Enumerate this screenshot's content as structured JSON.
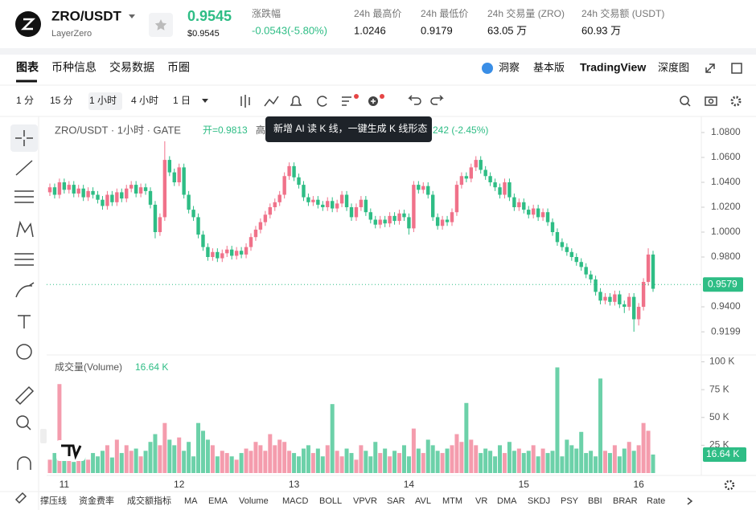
{
  "header": {
    "symbol": "ZRO/USDT",
    "name": "LayerZero",
    "price": "0.9545",
    "price_usd": "$0.9545",
    "stats": [
      {
        "label": "涨跌幅",
        "value": "-0.0543(-5.80%)"
      },
      {
        "label": "24h 最高价",
        "value": "1.0246"
      },
      {
        "label": "24h 最低价",
        "value": "0.9179"
      },
      {
        "label": "24h 交易量 (ZRO)",
        "value": "63.05 万"
      },
      {
        "label": "24h 交易额 (USDT)",
        "value": "60.93 万"
      }
    ]
  },
  "tabs": [
    "图表",
    "币种信息",
    "交易数据",
    "币圈"
  ],
  "right_tabs": [
    "洞察",
    "基本版",
    "TradingView",
    "深度图"
  ],
  "intervals": [
    "1 分",
    "15 分",
    "1 小时",
    "4 小时",
    "1 日"
  ],
  "indicators": [
    "撑压线",
    "资金费率",
    "成交额指标",
    "MA",
    "EMA",
    "Volume",
    "MACD",
    "BOLL",
    "VPVR",
    "SAR",
    "AVL",
    "MTM",
    "VR",
    "DMA",
    "SKDJ",
    "PSY",
    "BBI",
    "BRAR",
    "Rate"
  ],
  "chart_data": {
    "type": "candlestick",
    "legend": {
      "title": "ZRO/USDT · 1小时 · GATE",
      "open": "开=0.9813",
      "high": "高",
      "change": "242 (-2.45%)"
    },
    "tooltip": "新增 AI 读 K 线，一键生成 K 线形态",
    "volume_legend": "成交量(Volume)",
    "x_labels": [
      "11",
      "12",
      "13",
      "14",
      "15",
      "16"
    ],
    "up_color": "#f0728a",
    "down_color": "#2ebd85",
    "ylim": [
      0.9026,
      1.0929
    ],
    "yticks": [
      {
        "value": 0.9199,
        "label": "0.9199"
      },
      {
        "value": 0.94,
        "label": "0.9400"
      },
      {
        "value": 0.98,
        "label": "0.9800"
      },
      {
        "value": 1.0,
        "label": "1.0000"
      },
      {
        "value": 1.02,
        "label": "1.0200"
      },
      {
        "value": 1.04,
        "label": "1.0400"
      },
      {
        "value": 1.06,
        "label": "1.0600"
      },
      {
        "value": 1.08,
        "label": "1.0800"
      }
    ],
    "current_price": {
      "value": 0.9579,
      "label": "0.9579"
    },
    "volume_ylim": [
      0,
      104
    ],
    "volume_yticks": [
      {
        "value": 25,
        "label": "25 K"
      },
      {
        "value": 50,
        "label": "50 K"
      },
      {
        "value": 75,
        "label": "75 K"
      },
      {
        "value": 100,
        "label": "100 K"
      }
    ],
    "volume_tag": {
      "value": 16.64,
      "label": "16.64 K"
    },
    "ohlc": [
      [
        1.032,
        1.039,
        1.029,
        1.036
      ],
      [
        1.036,
        1.039,
        1.027,
        1.03
      ],
      [
        1.03,
        1.043,
        1.027,
        1.04
      ],
      [
        1.04,
        1.043,
        1.031,
        1.034
      ],
      [
        1.034,
        1.041,
        1.031,
        1.038
      ],
      [
        1.038,
        1.041,
        1.028,
        1.031
      ],
      [
        1.031,
        1.038,
        1.028,
        1.035
      ],
      [
        1.035,
        1.038,
        1.025,
        1.028
      ],
      [
        1.028,
        1.036,
        1.025,
        1.033
      ],
      [
        1.033,
        1.036,
        1.027,
        1.03
      ],
      [
        1.03,
        1.033,
        1.023,
        1.026
      ],
      [
        1.026,
        1.029,
        1.018,
        1.021
      ],
      [
        1.021,
        1.033,
        1.018,
        1.03
      ],
      [
        1.03,
        1.033,
        1.021,
        1.024
      ],
      [
        1.024,
        1.035,
        1.021,
        1.032
      ],
      [
        1.032,
        1.035,
        1.024,
        1.027
      ],
      [
        1.027,
        1.038,
        1.024,
        1.035
      ],
      [
        1.035,
        1.041,
        1.032,
        1.038
      ],
      [
        1.038,
        1.041,
        1.028,
        1.031
      ],
      [
        1.031,
        1.039,
        1.028,
        1.036
      ],
      [
        1.036,
        1.039,
        1.03,
        1.033
      ],
      [
        1.033,
        1.036,
        1.019,
        1.022
      ],
      [
        1.022,
        1.025,
        0.995,
        1.0
      ],
      [
        1.0,
        1.015,
        0.997,
        1.012
      ],
      [
        1.012,
        1.073,
        1.009,
        1.058
      ],
      [
        1.058,
        1.061,
        1.045,
        1.048
      ],
      [
        1.048,
        1.051,
        1.037,
        1.04
      ],
      [
        1.04,
        1.055,
        1.037,
        1.052
      ],
      [
        1.052,
        1.055,
        1.027,
        1.03
      ],
      [
        1.03,
        1.033,
        1.015,
        1.018
      ],
      [
        1.018,
        1.021,
        1.009,
        1.012
      ],
      [
        1.012,
        1.015,
        0.995,
        0.998
      ],
      [
        0.998,
        1.001,
        0.985,
        0.988
      ],
      [
        0.988,
        0.991,
        0.977,
        0.98
      ],
      [
        0.98,
        0.987,
        0.977,
        0.984
      ],
      [
        0.984,
        0.987,
        0.976,
        0.979
      ],
      [
        0.979,
        0.986,
        0.976,
        0.983
      ],
      [
        0.983,
        0.989,
        0.98,
        0.986
      ],
      [
        0.986,
        0.989,
        0.978,
        0.981
      ],
      [
        0.981,
        0.988,
        0.978,
        0.985
      ],
      [
        0.985,
        0.988,
        0.979,
        0.982
      ],
      [
        0.982,
        0.991,
        0.979,
        0.988
      ],
      [
        0.988,
        0.999,
        0.985,
        0.996
      ],
      [
        0.996,
        1.005,
        0.993,
        1.002
      ],
      [
        1.002,
        1.011,
        0.999,
        1.008
      ],
      [
        1.008,
        1.017,
        1.005,
        1.014
      ],
      [
        1.014,
        1.023,
        1.011,
        1.02
      ],
      [
        1.02,
        1.027,
        1.017,
        1.024
      ],
      [
        1.024,
        1.033,
        1.021,
        1.03
      ],
      [
        1.03,
        1.048,
        1.027,
        1.045
      ],
      [
        1.045,
        1.056,
        1.042,
        1.053
      ],
      [
        1.053,
        1.056,
        1.041,
        1.044
      ],
      [
        1.044,
        1.047,
        1.035,
        1.038
      ],
      [
        1.038,
        1.041,
        1.025,
        1.028
      ],
      [
        1.028,
        1.031,
        1.021,
        1.024
      ],
      [
        1.024,
        1.029,
        1.021,
        1.026
      ],
      [
        1.026,
        1.029,
        1.019,
        1.022
      ],
      [
        1.022,
        1.025,
        1.017,
        1.02
      ],
      [
        1.02,
        1.028,
        1.017,
        1.025
      ],
      [
        1.025,
        1.028,
        1.016,
        1.019
      ],
      [
        1.019,
        1.026,
        1.016,
        1.023
      ],
      [
        1.023,
        1.033,
        1.02,
        1.03
      ],
      [
        1.03,
        1.033,
        1.017,
        1.02
      ],
      [
        1.02,
        1.023,
        1.009,
        1.012
      ],
      [
        1.012,
        1.023,
        1.009,
        1.02
      ],
      [
        1.02,
        1.029,
        1.017,
        1.026
      ],
      [
        1.026,
        1.029,
        1.013,
        1.016
      ],
      [
        1.016,
        1.019,
        1.007,
        1.01
      ],
      [
        1.01,
        1.013,
        1.003,
        1.006
      ],
      [
        1.006,
        1.013,
        1.003,
        1.01
      ],
      [
        1.01,
        1.013,
        1.004,
        1.007
      ],
      [
        1.007,
        1.016,
        1.004,
        1.013
      ],
      [
        1.013,
        1.016,
        1.006,
        1.009
      ],
      [
        1.009,
        1.018,
        1.006,
        1.015
      ],
      [
        1.015,
        1.018,
        1.009,
        1.012
      ],
      [
        1.012,
        1.015,
        0.998,
        1.003
      ],
      [
        1.003,
        1.041,
        1.0,
        1.038
      ],
      [
        1.038,
        1.041,
        1.031,
        1.034
      ],
      [
        1.034,
        1.04,
        1.031,
        1.037
      ],
      [
        1.037,
        1.04,
        1.027,
        1.03
      ],
      [
        1.03,
        1.033,
        1.009,
        1.012
      ],
      [
        1.012,
        1.015,
        1.002,
        1.005
      ],
      [
        1.005,
        1.013,
        1.002,
        1.01
      ],
      [
        1.01,
        1.013,
        1.005,
        1.008
      ],
      [
        1.008,
        1.019,
        1.005,
        1.016
      ],
      [
        1.016,
        1.041,
        1.013,
        1.038
      ],
      [
        1.038,
        1.048,
        1.035,
        1.045
      ],
      [
        1.045,
        1.048,
        1.04,
        1.043
      ],
      [
        1.043,
        1.055,
        1.04,
        1.052
      ],
      [
        1.052,
        1.061,
        1.049,
        1.058
      ],
      [
        1.058,
        1.061,
        1.047,
        1.05
      ],
      [
        1.05,
        1.053,
        1.042,
        1.045
      ],
      [
        1.045,
        1.048,
        1.037,
        1.04
      ],
      [
        1.04,
        1.043,
        1.033,
        1.036
      ],
      [
        1.036,
        1.039,
        1.027,
        1.03
      ],
      [
        1.03,
        1.043,
        1.027,
        1.04
      ],
      [
        1.04,
        1.043,
        1.025,
        1.028
      ],
      [
        1.028,
        1.031,
        1.017,
        1.02
      ],
      [
        1.02,
        1.027,
        1.017,
        1.024
      ],
      [
        1.024,
        1.027,
        1.015,
        1.018
      ],
      [
        1.018,
        1.021,
        1.011,
        1.014
      ],
      [
        1.014,
        1.022,
        1.011,
        1.019
      ],
      [
        1.019,
        1.022,
        1.009,
        1.012
      ],
      [
        1.012,
        1.019,
        1.009,
        1.016
      ],
      [
        1.016,
        1.019,
        1.005,
        1.008
      ],
      [
        1.008,
        1.011,
        0.997,
        1.0
      ],
      [
        1.0,
        1.003,
        0.989,
        0.992
      ],
      [
        0.992,
        0.995,
        0.985,
        0.988
      ],
      [
        0.988,
        0.991,
        0.981,
        0.984
      ],
      [
        0.984,
        0.987,
        0.977,
        0.98
      ],
      [
        0.98,
        0.983,
        0.973,
        0.976
      ],
      [
        0.976,
        0.979,
        0.969,
        0.972
      ],
      [
        0.972,
        0.975,
        0.963,
        0.966
      ],
      [
        0.966,
        0.969,
        0.959,
        0.962
      ],
      [
        0.962,
        0.965,
        0.949,
        0.952
      ],
      [
        0.952,
        0.955,
        0.942,
        0.945
      ],
      [
        0.945,
        0.951,
        0.942,
        0.948
      ],
      [
        0.948,
        0.951,
        0.941,
        0.944
      ],
      [
        0.944,
        0.953,
        0.941,
        0.95
      ],
      [
        0.95,
        0.953,
        0.939,
        0.942
      ],
      [
        0.942,
        0.945,
        0.935,
        0.94
      ],
      [
        0.94,
        0.951,
        0.937,
        0.948
      ],
      [
        0.948,
        0.951,
        0.92,
        0.93
      ],
      [
        0.93,
        0.943,
        0.925,
        0.94
      ],
      [
        0.94,
        0.963,
        0.937,
        0.96
      ],
      [
        0.96,
        0.987,
        0.957,
        0.982
      ],
      [
        0.982,
        0.985,
        0.952,
        0.9545
      ]
    ],
    "volume": [
      12,
      18,
      80,
      20,
      15,
      10,
      22,
      14,
      12,
      18,
      15,
      20,
      25,
      14,
      30,
      18,
      25,
      20,
      22,
      15,
      20,
      28,
      35,
      25,
      45,
      30,
      25,
      32,
      20,
      28,
      15,
      45,
      38,
      30,
      25,
      15,
      20,
      18,
      15,
      12,
      18,
      22,
      20,
      28,
      25,
      20,
      35,
      25,
      30,
      28,
      20,
      18,
      15,
      22,
      25,
      18,
      22,
      15,
      25,
      62,
      20,
      15,
      22,
      18,
      12,
      25,
      20,
      15,
      28,
      18,
      22,
      15,
      20,
      18,
      25,
      15,
      40,
      22,
      18,
      30,
      25,
      20,
      18,
      22,
      25,
      35,
      28,
      63,
      30,
      25,
      18,
      22,
      20,
      15,
      25,
      18,
      28,
      20,
      22,
      18,
      20,
      25,
      15,
      22,
      18,
      20,
      95,
      15,
      30,
      25,
      22,
      37,
      18,
      20,
      15,
      85,
      20,
      18,
      25,
      15,
      22,
      28,
      20,
      25,
      45,
      38,
      16.64
    ]
  }
}
